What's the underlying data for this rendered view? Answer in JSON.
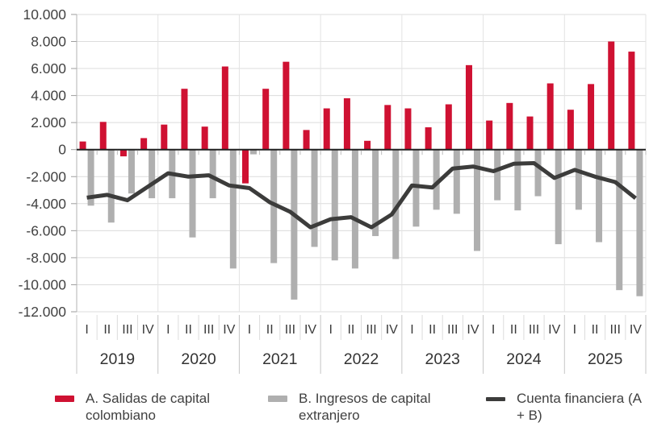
{
  "chart_data": {
    "type": "bar",
    "subtype": "grouped-bars-with-line",
    "title": "",
    "xlabel": "",
    "ylabel": "",
    "ylim": [
      -12000,
      10000
    ],
    "grid": true,
    "legend_position": "bottom",
    "y_ticks": [
      {
        "v": 10000,
        "label": "10.000"
      },
      {
        "v": 8000,
        "label": "8.000"
      },
      {
        "v": 6000,
        "label": "6.000"
      },
      {
        "v": 4000,
        "label": "4.000"
      },
      {
        "v": 2000,
        "label": "2.000"
      },
      {
        "v": 0,
        "label": "0"
      },
      {
        "v": -2000,
        "label": "-2.000"
      },
      {
        "v": -4000,
        "label": "-4.000"
      },
      {
        "v": -6000,
        "label": "-6.000"
      },
      {
        "v": -8000,
        "label": "-8.000"
      },
      {
        "v": -10000,
        "label": "-10.000"
      },
      {
        "v": -12000,
        "label": "-12.000"
      }
    ],
    "quarter_labels": [
      "I",
      "II",
      "III",
      "IV"
    ],
    "years": [
      "2019",
      "2020",
      "2021",
      "2022",
      "2023",
      "2024",
      "2025"
    ],
    "categories": [
      "2019-I",
      "2019-II",
      "2019-III",
      "2019-IV",
      "2020-I",
      "2020-II",
      "2020-III",
      "2020-IV",
      "2021-I",
      "2021-II",
      "2021-III",
      "2021-IV",
      "2022-I",
      "2022-II",
      "2022-III",
      "2022-IV",
      "2023-I",
      "2023-II",
      "2023-III",
      "2023-IV",
      "2024-I",
      "2024-II",
      "2024-III",
      "2024-IV",
      "2025-I",
      "2025-II",
      "2025-III",
      "2025-IV"
    ],
    "series": [
      {
        "name": "A. Salidas de capital colombiano",
        "type": "bar",
        "color": "#CF1132",
        "values": [
          600,
          2050,
          -500,
          850,
          1850,
          4500,
          1700,
          6150,
          -2500,
          4500,
          6500,
          1450,
          3050,
          3800,
          650,
          3300,
          3050,
          1650,
          3350,
          6250,
          2150,
          3450,
          2450,
          4900,
          2950,
          4850,
          8000,
          7250
        ]
      },
      {
        "name": "B. Ingresos de capital extranjero",
        "type": "bar",
        "color": "#AFAFAF",
        "values": [
          -4150,
          -5400,
          -3250,
          -3600,
          -3600,
          -6500,
          -3600,
          -8800,
          -350,
          -8400,
          -11100,
          -7200,
          -8200,
          -8800,
          -6400,
          -8100,
          -5700,
          -4450,
          -4750,
          -7500,
          -3750,
          -4500,
          -3450,
          -7000,
          -4450,
          -6850,
          -10400,
          -10850
        ]
      },
      {
        "name": "Cuenta financiera (A + B)",
        "type": "line",
        "color": "#3C3C3B",
        "values": [
          -3550,
          -3350,
          -3750,
          -2750,
          -1750,
          -2000,
          -1900,
          -2650,
          -2850,
          -3900,
          -4600,
          -5750,
          -5150,
          -5000,
          -5750,
          -4800,
          -2650,
          -2800,
          -1400,
          -1250,
          -1600,
          -1050,
          -1000,
          -2100,
          -1500,
          -2000,
          -2400,
          -3600
        ]
      }
    ],
    "colors": {
      "salidas": "#CF1132",
      "ingresos": "#AFAFAF",
      "cuenta": "#3C3C3B",
      "grid": "#DCDCDC",
      "year_grid": "#E3E3E3",
      "axis": "#212121",
      "tick": "#9E9E9E",
      "label_text": "#424242"
    }
  },
  "legend": {
    "items": [
      {
        "label": "A. Salidas de capital colombiano",
        "color": "#CF1132"
      },
      {
        "label": "B. Ingresos de capital extranjero",
        "color": "#AFAFAF"
      },
      {
        "label": "Cuenta financiera (A + B)",
        "color": "#3C3C3B"
      }
    ]
  }
}
